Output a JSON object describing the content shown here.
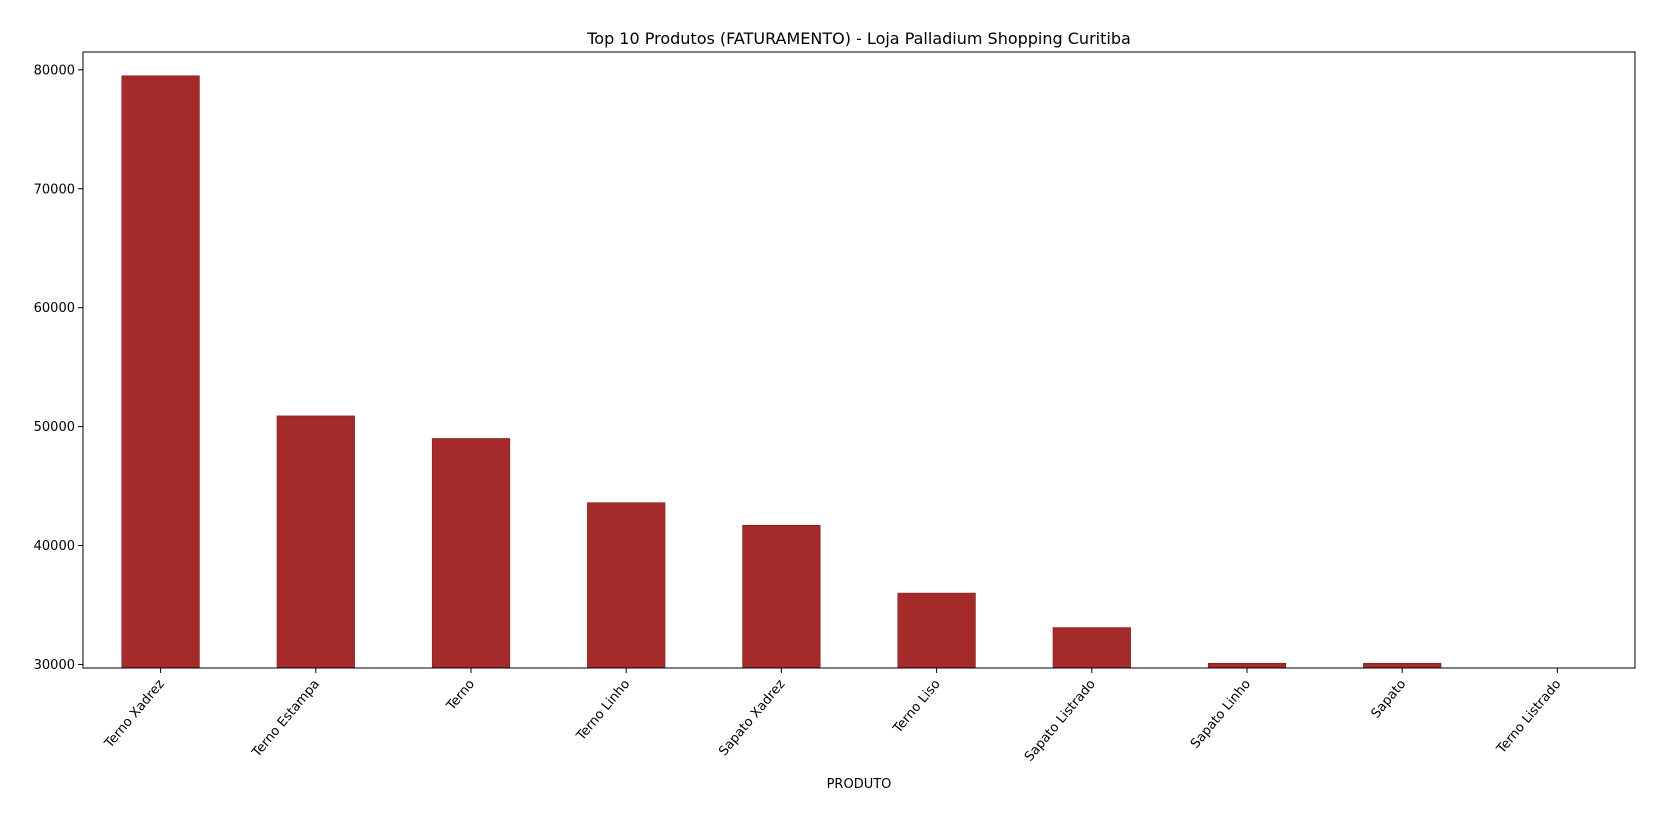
{
  "chart_data": {
    "type": "bar",
    "title": "Top 10 Produtos (FATURAMENTO) - Loja Palladium Shopping Curitiba",
    "xlabel": "PRODUTO",
    "ylabel": "",
    "categories": [
      "Terno Xadrez",
      "Terno Estampa",
      "Terno",
      "Terno Linho",
      "Sapato Xadrez",
      "Terno Liso",
      "Sapato Listrado",
      "Sapato Linho",
      "Sapato",
      "Terno Listrado"
    ],
    "values": [
      79500,
      50900,
      49000,
      43600,
      41700,
      36000,
      33100,
      30100,
      30100,
      29700
    ],
    "ylim": [
      29700,
      81500
    ],
    "yticks": [
      30000,
      40000,
      50000,
      60000,
      70000,
      80000
    ],
    "grid": false,
    "bar_color": "#a52a2a",
    "bar_edge_color": "#7a1e1e"
  }
}
